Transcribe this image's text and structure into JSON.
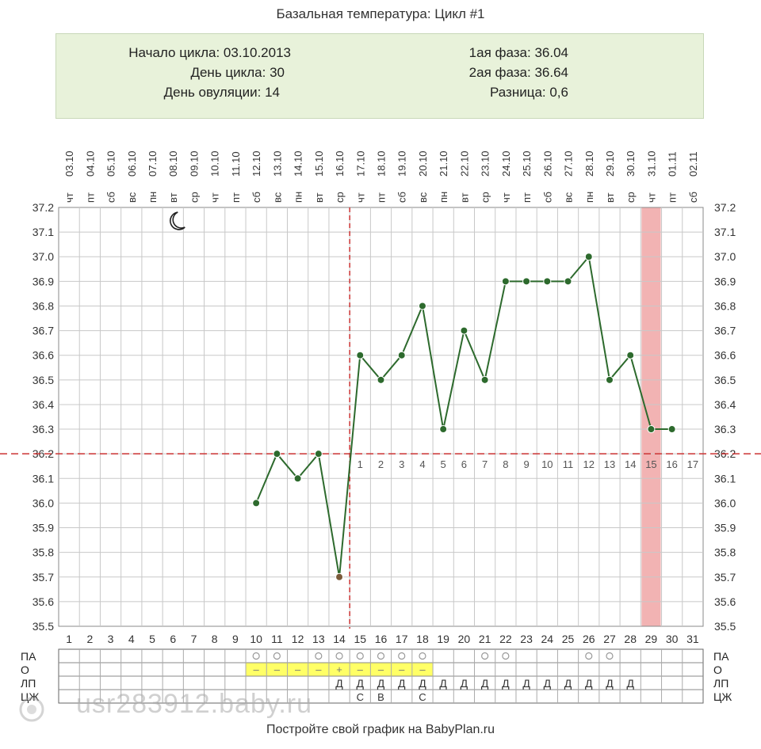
{
  "header": {
    "title": "Базальная температура: Цикл #1"
  },
  "info": {
    "cycle_start": "Начало цикла: 03.10.2013",
    "cycle_day": "День цикла: 30",
    "ovulation_day": "День овуляции: 14",
    "phase1": "1ая фаза: 36.04",
    "phase2": "2ая фаза: 36.64",
    "difference": "Разница: 0,6"
  },
  "row_labels": [
    "ПА",
    "О",
    "ЛП",
    "ЦЖ"
  ],
  "footer": "Постройте свой график на BabyPlan.ru",
  "watermark": "usr283912.baby.ru",
  "colors": {
    "line": "#2d6a2d",
    "marker": "#2d6a2d",
    "coverline": "#cc3333",
    "ovulation_line": "#cc3333",
    "highlight_day": "#f2b3b3",
    "egg_white_fill": "#ffff66",
    "info_bg": "#e8f2da",
    "grid": "#c8c8c8"
  },
  "chart_data": {
    "type": "line",
    "title": "Базальная температура: Цикл #1",
    "ylim": [
      35.5,
      37.2
    ],
    "y_ticks": [
      "37.2",
      "37.1",
      "37.0",
      "36.9",
      "36.8",
      "36.7",
      "36.6",
      "36.5",
      "36.4",
      "36.3",
      "36.2",
      "36.1",
      "36.0",
      "35.9",
      "35.8",
      "35.7",
      "35.6",
      "35.5"
    ],
    "dates": [
      "03.10",
      "04.10",
      "05.10",
      "06.10",
      "07.10",
      "08.10",
      "09.10",
      "10.10",
      "11.10",
      "12.10",
      "13.10",
      "14.10",
      "15.10",
      "16.10",
      "17.10",
      "18.10",
      "19.10",
      "20.10",
      "21.10",
      "22.10",
      "23.10",
      "24.10",
      "25.10",
      "26.10",
      "27.10",
      "28.10",
      "29.10",
      "30.10",
      "31.10",
      "01.11",
      "02.11"
    ],
    "weekdays": [
      "чт",
      "пт",
      "сб",
      "вс",
      "пн",
      "вт",
      "ср",
      "чт",
      "пт",
      "сб",
      "вс",
      "пн",
      "вт",
      "ср",
      "чт",
      "пт",
      "сб",
      "вс",
      "пн",
      "вт",
      "ср",
      "чт",
      "пт",
      "сб",
      "вс",
      "пн",
      "вт",
      "ср",
      "чт",
      "пт",
      "сб"
    ],
    "days": [
      1,
      2,
      3,
      4,
      5,
      6,
      7,
      8,
      9,
      10,
      11,
      12,
      13,
      14,
      15,
      16,
      17,
      18,
      19,
      20,
      21,
      22,
      23,
      24,
      25,
      26,
      27,
      28,
      29,
      30,
      31
    ],
    "temperatures": [
      null,
      null,
      null,
      null,
      null,
      null,
      null,
      null,
      null,
      36.0,
      36.2,
      36.1,
      36.2,
      35.7,
      36.6,
      36.5,
      36.6,
      36.8,
      36.3,
      36.7,
      36.5,
      36.9,
      36.9,
      36.9,
      36.9,
      37.0,
      36.5,
      36.6,
      36.3,
      36.3,
      null
    ],
    "coverline": 36.2,
    "ovulation_day": 14,
    "post_ovulation_labels": [
      "1",
      "2",
      "3",
      "4",
      "5",
      "6",
      "7",
      "8",
      "9",
      "10",
      "11",
      "12",
      "13",
      "14",
      "15",
      "16",
      "17"
    ],
    "highlighted_day": 29,
    "sleep_icon_day": 6,
    "pa_row": {
      "days": [
        10,
        11,
        13,
        14,
        15,
        16,
        17,
        18,
        21,
        22,
        26,
        27
      ],
      "symbol": "○"
    },
    "o_row": {
      "cells": {
        "10": "–",
        "11": "–",
        "12": "–",
        "13": "–",
        "14": "+",
        "15": "–",
        "16": "–",
        "17": "–",
        "18": "–"
      }
    },
    "lp_row": {
      "cells": {
        "14": "Д",
        "15": "Д",
        "16": "Д",
        "17": "Д",
        "18": "Д",
        "19": "Д",
        "20": "Д",
        "21": "Д",
        "22": "Д",
        "23": "Д",
        "24": "Д",
        "25": "Д",
        "26": "Д",
        "27": "Д",
        "28": "Д"
      }
    },
    "cj_row": {
      "cells": {
        "15": "С",
        "16": "В",
        "18": "С"
      }
    }
  }
}
